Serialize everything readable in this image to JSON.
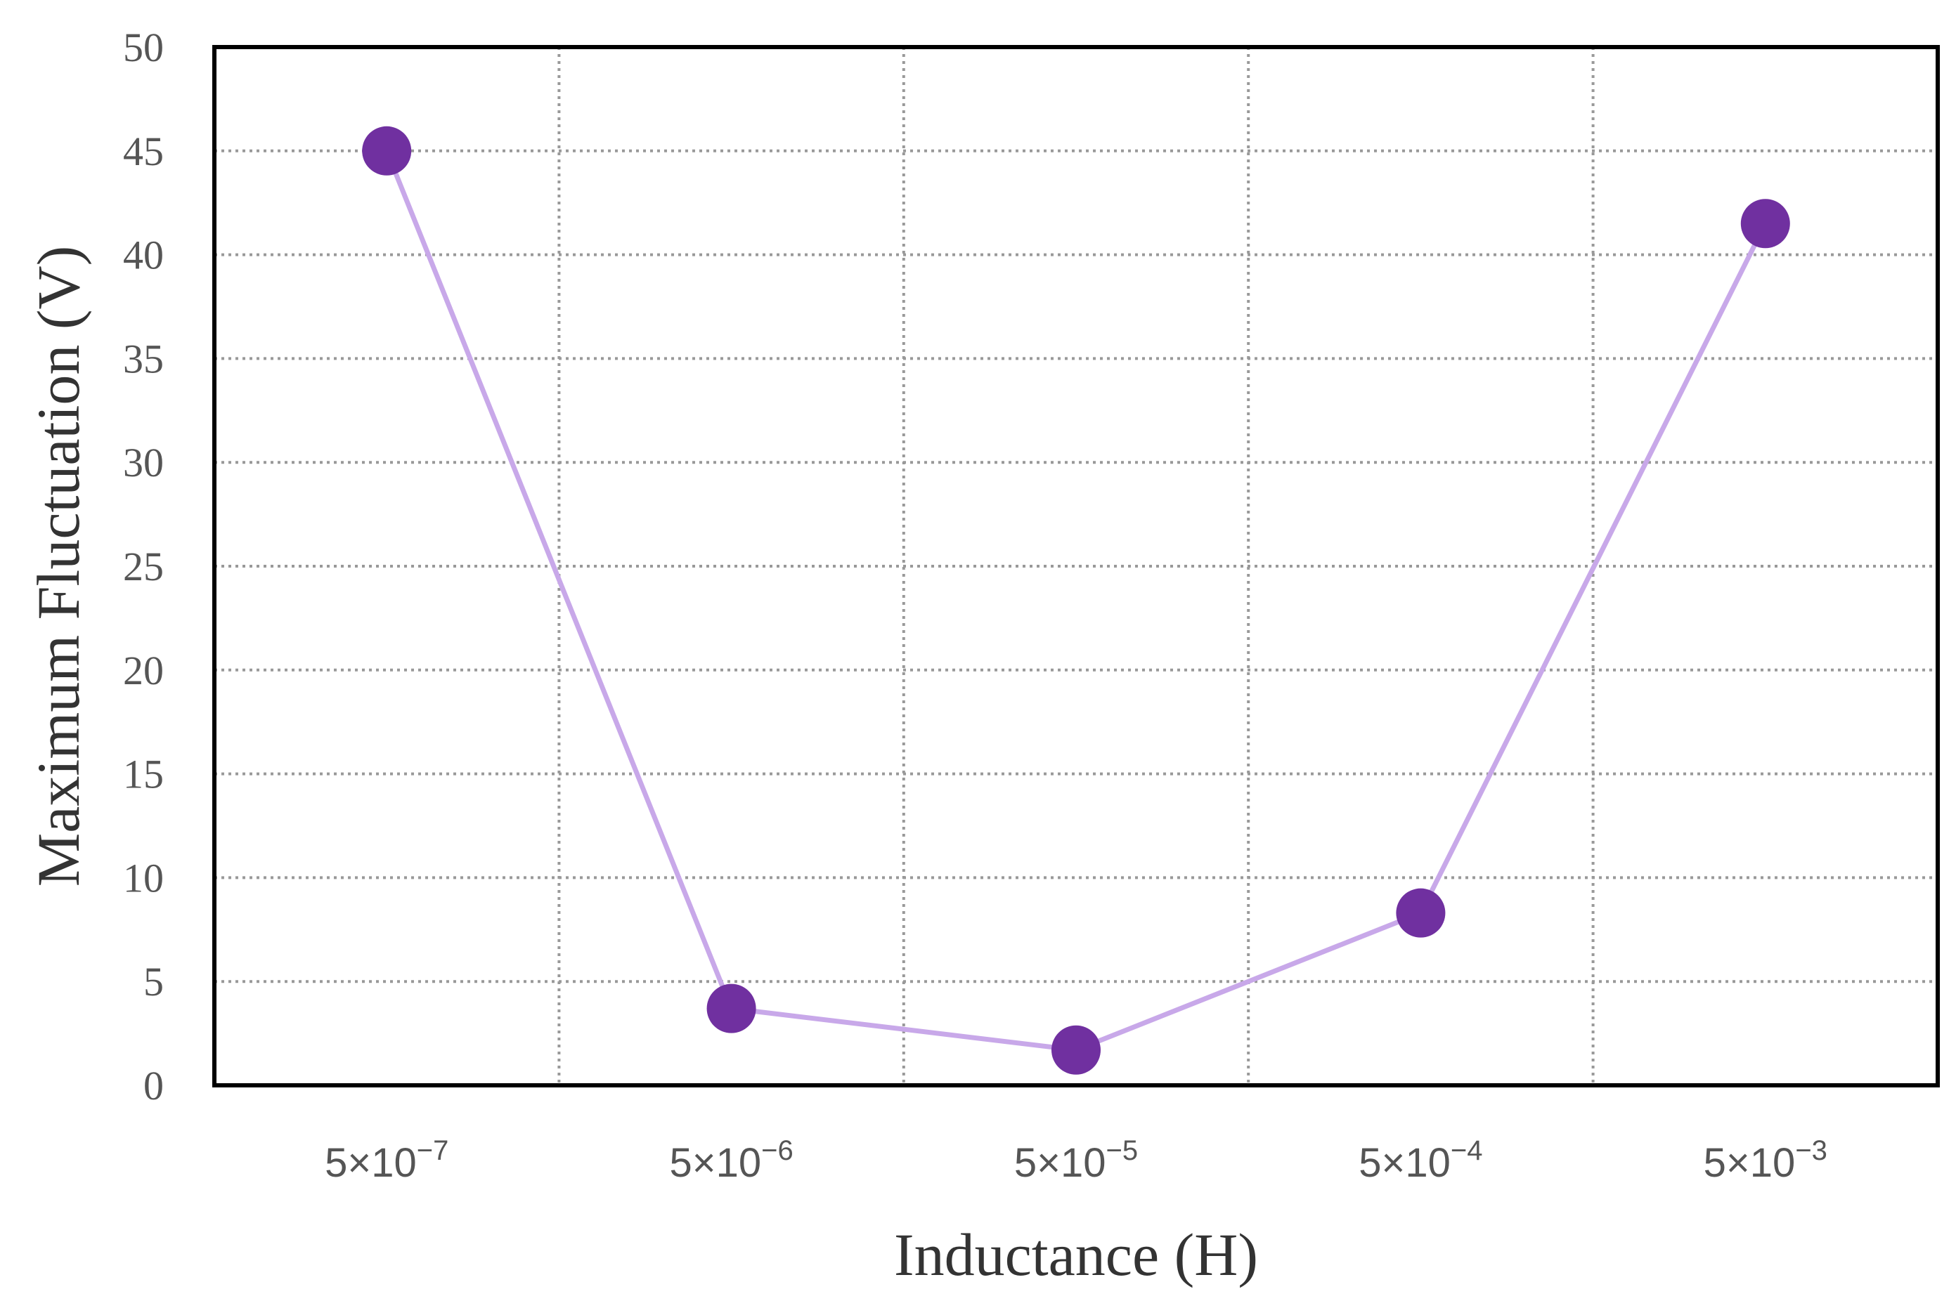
{
  "chart_data": {
    "type": "line",
    "xlabel": "Inductance (H)",
    "ylabel": "Maximum Fluctuation (V)",
    "categories": [
      {
        "base": "5×10",
        "exp": "−7"
      },
      {
        "base": "5×10",
        "exp": "−6"
      },
      {
        "base": "5×10",
        "exp": "−5"
      },
      {
        "base": "5×10",
        "exp": "−4"
      },
      {
        "base": "5×10",
        "exp": "−3"
      }
    ],
    "series": [
      {
        "values": [
          45,
          3.7,
          1.7,
          8.3,
          41.5
        ]
      }
    ],
    "ylim": [
      0,
      50
    ],
    "yticks": [
      0,
      5,
      10,
      15,
      20,
      25,
      30,
      35,
      40,
      45,
      50
    ],
    "grid": true,
    "colors": {
      "line": "#c8a8e9",
      "marker": "#7030a0",
      "grid": "#999999",
      "frame": "#000000"
    }
  }
}
